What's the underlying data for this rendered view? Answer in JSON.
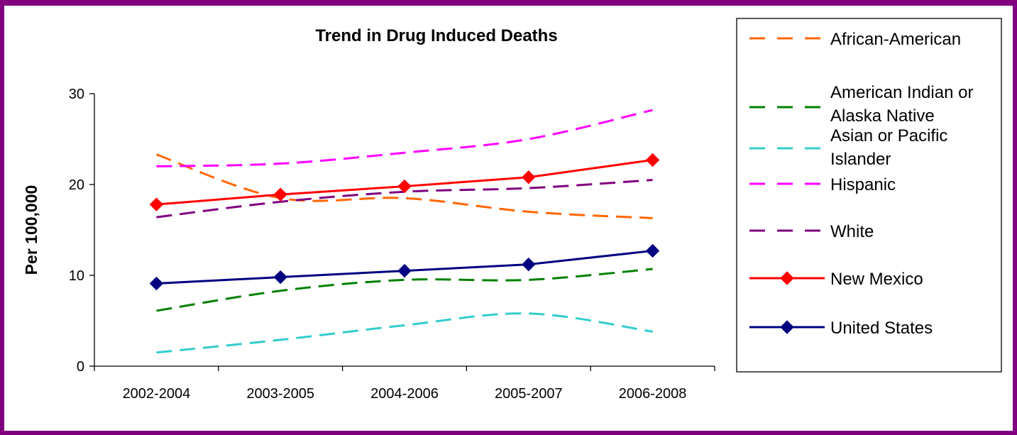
{
  "chart_data": {
    "type": "line",
    "title": "Trend in Drug Induced Deaths",
    "xlabel": "",
    "ylabel": "Per 100,000",
    "categories": [
      "2002-2004",
      "2003-2005",
      "2004-2006",
      "2005-2007",
      "2006-2008"
    ],
    "ylim": [
      0,
      30
    ],
    "yticks": [
      "0",
      "10",
      "20",
      "30"
    ],
    "grid": false,
    "legend_position": "right",
    "series": [
      {
        "name": "African-American",
        "values": [
          23.3,
          18.5,
          18.5,
          17.0,
          16.3
        ],
        "color": "#ff6600",
        "style": "dashed",
        "marker": "none"
      },
      {
        "name": "American Indian or Alaska Native",
        "values": [
          6.1,
          8.3,
          9.5,
          9.5,
          10.7
        ],
        "color": "#008000",
        "style": "dashed",
        "marker": "none"
      },
      {
        "name": "Asian or Pacific Islander",
        "values": [
          1.5,
          2.9,
          4.5,
          5.8,
          3.8
        ],
        "color": "#33cccc",
        "style": "dashed",
        "marker": "none"
      },
      {
        "name": "Hispanic",
        "values": [
          22.0,
          22.3,
          23.5,
          25.0,
          28.2
        ],
        "color": "#ff00ff",
        "style": "dashed",
        "marker": "none"
      },
      {
        "name": "White",
        "values": [
          16.4,
          18.1,
          19.2,
          19.6,
          20.5
        ],
        "color": "#800080",
        "style": "dashed",
        "marker": "none"
      },
      {
        "name": "New Mexico",
        "values": [
          17.8,
          18.9,
          19.8,
          20.8,
          22.7
        ],
        "color": "#ff0000",
        "style": "solid",
        "marker": "diamond"
      },
      {
        "name": "United States",
        "values": [
          9.1,
          9.8,
          10.5,
          11.2,
          12.7
        ],
        "color": "#000080",
        "style": "solid",
        "marker": "diamond"
      }
    ]
  }
}
